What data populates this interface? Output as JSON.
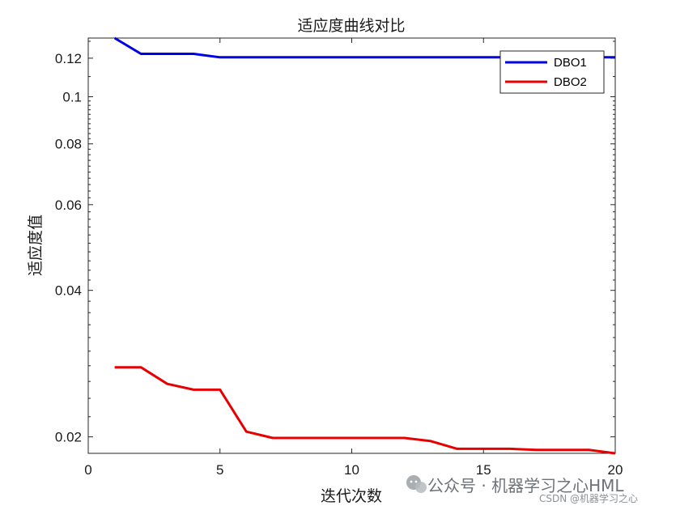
{
  "chart_data": {
    "type": "line",
    "title": "适应度曲线对比",
    "xlabel": "迭代次数",
    "ylabel": "适应度值",
    "xlim": [
      0,
      20
    ],
    "ylim": [
      0.0185,
      0.132
    ],
    "yscale": "log",
    "x_ticks": [
      0,
      5,
      10,
      15,
      20
    ],
    "y_ticks": [
      0.02,
      0.04,
      0.06,
      0.08,
      0.1,
      0.12
    ],
    "y_tick_labels": [
      "0.02",
      "0.04",
      "0.06",
      "0.08",
      "0.1",
      "0.12"
    ],
    "grid": false,
    "legend_position": "top-right",
    "series": [
      {
        "name": "DBO1",
        "color": "#0000e6",
        "x": [
          1,
          2,
          3,
          4,
          5,
          6,
          7,
          8,
          9,
          10,
          11,
          12,
          13,
          14,
          15,
          16,
          17,
          18,
          19,
          20
        ],
        "values": [
          0.132,
          0.1225,
          0.1225,
          0.1225,
          0.1205,
          0.1205,
          0.1205,
          0.1205,
          0.1205,
          0.1205,
          0.1205,
          0.1205,
          0.1205,
          0.1205,
          0.1205,
          0.1205,
          0.1205,
          0.1205,
          0.1205,
          0.1205
        ]
      },
      {
        "name": "DBO2",
        "color": "#e60000",
        "x": [
          1,
          2,
          3,
          4,
          5,
          6,
          7,
          8,
          9,
          10,
          11,
          12,
          13,
          14,
          15,
          16,
          17,
          18,
          19,
          20
        ],
        "values": [
          0.0278,
          0.0278,
          0.0257,
          0.025,
          0.025,
          0.0205,
          0.0199,
          0.0199,
          0.0199,
          0.0199,
          0.0199,
          0.0199,
          0.0196,
          0.0189,
          0.0189,
          0.0189,
          0.0188,
          0.0188,
          0.0188,
          0.0185
        ]
      }
    ]
  },
  "watermark": {
    "main": "公众号 · 机器学习之心HML",
    "sub": "CSDN @机器学习之心"
  }
}
